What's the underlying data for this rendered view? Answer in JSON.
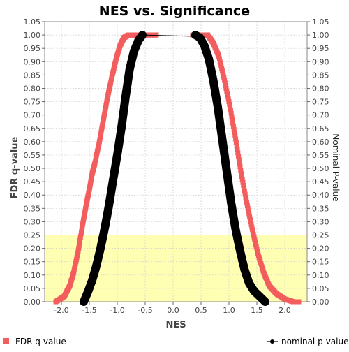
{
  "chart_data": {
    "type": "scatter",
    "title": "NES vs. Significance",
    "xlabel": "NES",
    "ylabel_left": "FDR q-value",
    "ylabel_right": "Nominal P-value",
    "xlim": [
      -2.3,
      2.4
    ],
    "ylim": [
      0,
      1.05
    ],
    "x_ticks": [
      "-2.0",
      "-1.5",
      "-1.0",
      "-0.5",
      "0.0",
      "0.5",
      "1.0",
      "1.5",
      "2.0"
    ],
    "y_ticks": [
      "0.00",
      "0.05",
      "0.10",
      "0.15",
      "0.20",
      "0.25",
      "0.30",
      "0.35",
      "0.40",
      "0.45",
      "0.50",
      "0.55",
      "0.60",
      "0.65",
      "0.70",
      "0.75",
      "0.80",
      "0.85",
      "0.90",
      "0.95",
      "1.00",
      "1.05"
    ],
    "grid": true,
    "highlight_band": {
      "y_from": 0,
      "y_to": 0.25,
      "color": "#ffffb4"
    },
    "series": [
      {
        "name": "FDR q-value",
        "marker": "square",
        "color": "#f35d5d",
        "branches": [
          {
            "x": [
              -2.1,
              -1.95,
              -1.85,
              -1.78,
              -1.7,
              -1.62,
              -1.55,
              -1.5,
              -1.45,
              -1.4,
              -1.32,
              -1.25,
              -1.18,
              -1.1,
              -1.02,
              -0.95,
              -0.88,
              -0.8,
              -0.72,
              -0.65,
              -0.55,
              -0.45,
              -0.3
            ],
            "y": [
              0.0,
              0.02,
              0.06,
              0.11,
              0.19,
              0.29,
              0.37,
              0.42,
              0.48,
              0.52,
              0.6,
              0.68,
              0.76,
              0.84,
              0.91,
              0.96,
              0.99,
              1.0,
              1.0,
              1.0,
              1.0,
              1.0,
              1.0
            ]
          },
          {
            "x": [
              0.35,
              0.5,
              0.62,
              0.72,
              0.82,
              0.92,
              1.02,
              1.12,
              1.22,
              1.32,
              1.42,
              1.52,
              1.62,
              1.72,
              1.85,
              2.0,
              2.15,
              2.25
            ],
            "y": [
              1.0,
              1.0,
              1.0,
              0.97,
              0.92,
              0.83,
              0.73,
              0.61,
              0.48,
              0.37,
              0.27,
              0.18,
              0.11,
              0.06,
              0.03,
              0.01,
              0.0,
              0.0
            ]
          }
        ]
      },
      {
        "name": "nominal p-value",
        "marker": "line-dot",
        "color": "#000000",
        "connector": {
          "x": [
            -0.55,
            0.4
          ],
          "y": [
            1.0,
            0.995
          ]
        },
        "branches": [
          {
            "x": [
              -1.6,
              -1.52,
              -1.45,
              -1.38,
              -1.3,
              -1.22,
              -1.15,
              -1.08,
              -1.0,
              -0.92,
              -0.85,
              -0.78,
              -0.7,
              -0.62,
              -0.55
            ],
            "y": [
              0.0,
              0.04,
              0.08,
              0.13,
              0.2,
              0.28,
              0.36,
              0.45,
              0.55,
              0.66,
              0.77,
              0.87,
              0.94,
              0.98,
              1.0
            ]
          },
          {
            "x": [
              0.4,
              0.48,
              0.56,
              0.64,
              0.72,
              0.8,
              0.88,
              0.96,
              1.04,
              1.12,
              1.2,
              1.28,
              1.36,
              1.45,
              1.55,
              1.65
            ],
            "y": [
              1.0,
              0.99,
              0.96,
              0.91,
              0.83,
              0.73,
              0.61,
              0.49,
              0.37,
              0.27,
              0.19,
              0.12,
              0.07,
              0.04,
              0.02,
              0.0
            ]
          }
        ]
      }
    ],
    "legend": [
      {
        "label": "FDR q-value",
        "marker": "square",
        "color": "#f35d5d",
        "position": "bottom-left"
      },
      {
        "label": "nominal p-value",
        "marker": "line-dot",
        "color": "#000000",
        "position": "bottom-right"
      }
    ]
  }
}
